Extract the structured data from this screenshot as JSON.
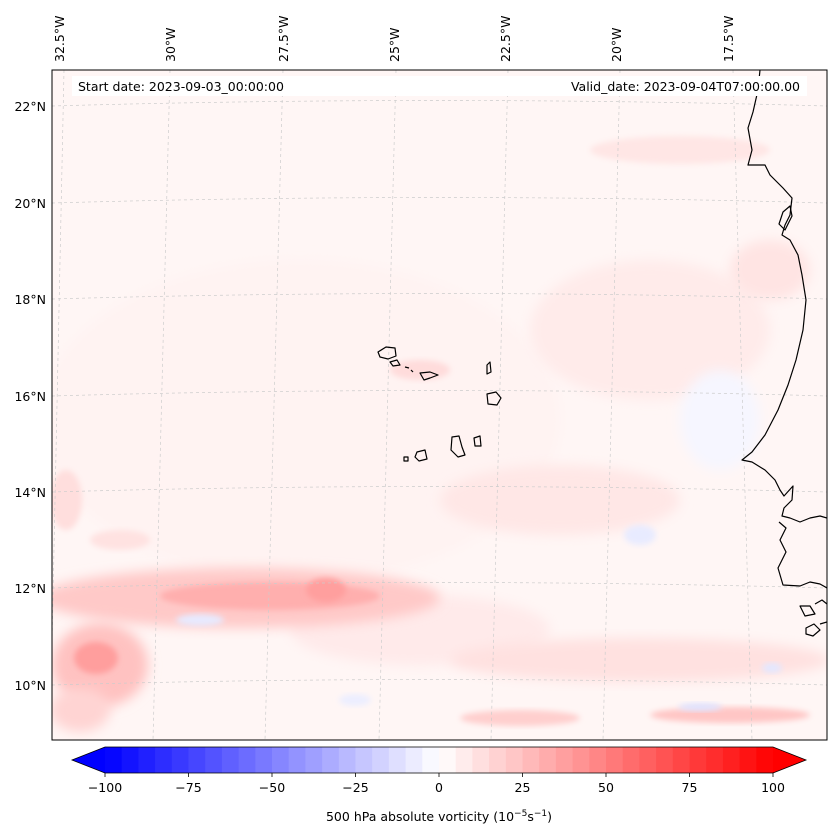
{
  "header": {
    "start_date": "Start date: 2023-09-03_00:00:00",
    "valid_date": "Valid_date: 2023-09-04T07:00:00.00"
  },
  "map": {
    "longitude_labels": [
      "32.5°W",
      "30°W",
      "27.5°W",
      "25°W",
      "22.5°W",
      "20°W",
      "17.5°W"
    ],
    "latitude_labels": [
      "22°N",
      "20°N",
      "18°N",
      "16°N",
      "14°N",
      "12°N",
      "10°N"
    ],
    "extent": {
      "lon_min": -32.8,
      "lon_max": -15.4,
      "lat_min": 8.9,
      "lat_max": 22.8
    },
    "coastline_color": "#000000",
    "gridline_color": "#cccccc"
  },
  "colorbar": {
    "label": "500 hPa absolute vorticity (10",
    "unit_exp_a": "−5",
    "unit_mid": "s",
    "unit_exp_b": "−1",
    "unit_close": ")",
    "tick_labels": [
      "−100",
      "−75",
      "−50",
      "−25",
      "0",
      "25",
      "50",
      "75",
      "100"
    ],
    "vmin": -100,
    "vmax": 100,
    "levels": 41,
    "colormap": "bwr",
    "low_color": "#0000ff",
    "mid_color": "#ffffff",
    "high_color": "#ff0000"
  }
}
